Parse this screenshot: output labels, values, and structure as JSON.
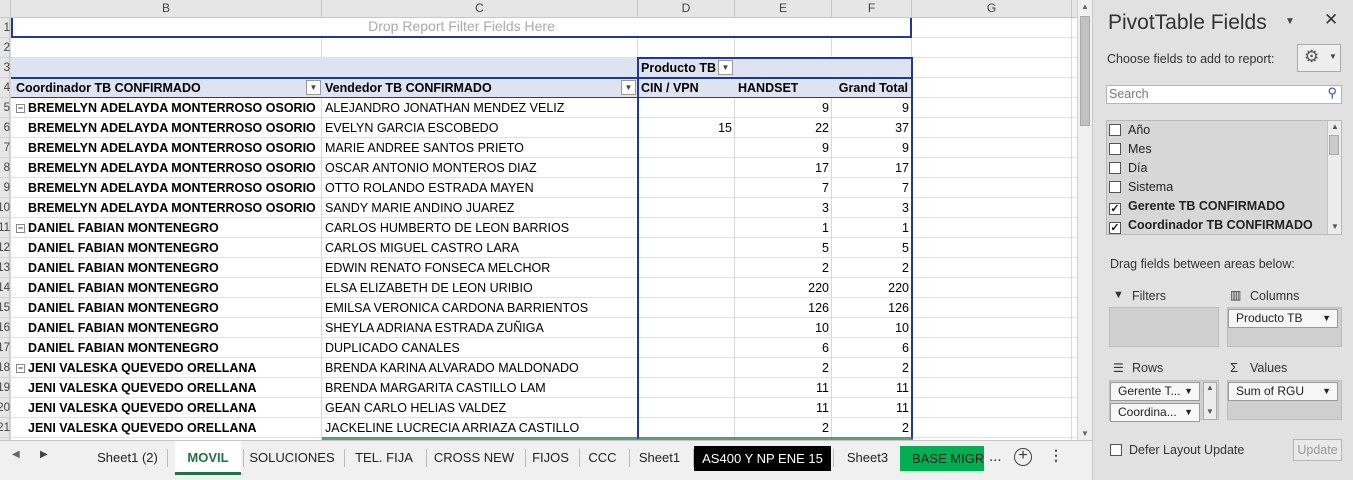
{
  "columns": [
    "B",
    "C",
    "D",
    "E",
    "F",
    "G"
  ],
  "rows": [
    "1",
    "2",
    "3",
    "4",
    "5",
    "6",
    "7",
    "8",
    "9",
    "10",
    "11",
    "12",
    "13",
    "14",
    "15",
    "16",
    "17",
    "18",
    "19",
    "20",
    "21"
  ],
  "pivot": {
    "filter_placeholder": "Drop Report Filter Fields Here",
    "col_field": "Producto TB",
    "row_header_1": "Coordinador TB CONFIRMADO",
    "row_header_2": "Vendedor TB CONFIRMADO",
    "col_headers": [
      "CIN / VPN",
      "HANDSET",
      "Grand Total"
    ],
    "data": [
      {
        "coord": "BREMELYN ADELAYDA MONTERROSO OSORIO",
        "vend": "ALEJANDRO JONATHAN MENDEZ VELIZ",
        "cin": "",
        "handset": "9",
        "total": "9",
        "first": true
      },
      {
        "coord": "BREMELYN ADELAYDA MONTERROSO OSORIO",
        "vend": "EVELYN GARCIA ESCOBEDO",
        "cin": "15",
        "handset": "22",
        "total": "37",
        "first": false
      },
      {
        "coord": "BREMELYN ADELAYDA MONTERROSO OSORIO",
        "vend": "MARIE ANDREE SANTOS PRIETO",
        "cin": "",
        "handset": "9",
        "total": "9",
        "first": false
      },
      {
        "coord": "BREMELYN ADELAYDA MONTERROSO OSORIO",
        "vend": "OSCAR ANTONIO MONTEROS DIAZ",
        "cin": "",
        "handset": "17",
        "total": "17",
        "first": false
      },
      {
        "coord": "BREMELYN ADELAYDA MONTERROSO OSORIO",
        "vend": "OTTO ROLANDO ESTRADA MAYEN",
        "cin": "",
        "handset": "7",
        "total": "7",
        "first": false
      },
      {
        "coord": "BREMELYN ADELAYDA MONTERROSO OSORIO",
        "vend": "SANDY MARIE ANDINO JUAREZ",
        "cin": "",
        "handset": "3",
        "total": "3",
        "first": false
      },
      {
        "coord": "DANIEL FABIAN MONTENEGRO",
        "vend": "CARLOS HUMBERTO DE LEON BARRIOS",
        "cin": "",
        "handset": "1",
        "total": "1",
        "first": true
      },
      {
        "coord": "DANIEL FABIAN MONTENEGRO",
        "vend": "CARLOS MIGUEL CASTRO LARA",
        "cin": "",
        "handset": "5",
        "total": "5",
        "first": false
      },
      {
        "coord": "DANIEL FABIAN MONTENEGRO",
        "vend": "EDWIN RENATO FONSECA MELCHOR",
        "cin": "",
        "handset": "2",
        "total": "2",
        "first": false
      },
      {
        "coord": "DANIEL FABIAN MONTENEGRO",
        "vend": "ELSA ELIZABETH DE LEON URIBIO",
        "cin": "",
        "handset": "220",
        "total": "220",
        "first": false
      },
      {
        "coord": "DANIEL FABIAN MONTENEGRO",
        "vend": "EMILSA VERONICA CARDONA BARRIENTOS",
        "cin": "",
        "handset": "126",
        "total": "126",
        "first": false
      },
      {
        "coord": "DANIEL FABIAN MONTENEGRO",
        "vend": "SHEYLA ADRIANA ESTRADA ZUÑIGA",
        "cin": "",
        "handset": "10",
        "total": "10",
        "first": false
      },
      {
        "coord": "DANIEL FABIAN MONTENEGRO",
        "vend": "DUPLICADO CANALES",
        "cin": "",
        "handset": "6",
        "total": "6",
        "first": false
      },
      {
        "coord": "JENI VALESKA QUEVEDO ORELLANA",
        "vend": "BRENDA KARINA ALVARADO MALDONADO",
        "cin": "",
        "handset": "2",
        "total": "2",
        "first": true
      },
      {
        "coord": "JENI VALESKA QUEVEDO ORELLANA",
        "vend": "BRENDA MARGARITA CASTILLO LAM",
        "cin": "",
        "handset": "11",
        "total": "11",
        "first": false
      },
      {
        "coord": "JENI VALESKA QUEVEDO ORELLANA",
        "vend": "GEAN CARLO HELIAS VALDEZ",
        "cin": "",
        "handset": "11",
        "total": "11",
        "first": false
      },
      {
        "coord": "JENI VALESKA QUEVEDO ORELLANA",
        "vend": "JACKELINE LUCRECIA ARRIAZA CASTILLO",
        "cin": "",
        "handset": "2",
        "total": "2",
        "first": false
      }
    ]
  },
  "tabs": {
    "items": [
      {
        "label": "Sheet1 (2)",
        "style": "normal"
      },
      {
        "label": "MOVIL",
        "style": "active"
      },
      {
        "label": "SOLUCIONES",
        "style": "normal"
      },
      {
        "label": "TEL. FIJA",
        "style": "normal"
      },
      {
        "label": "CROSS NEW",
        "style": "normal"
      },
      {
        "label": "FIJOS",
        "style": "normal"
      },
      {
        "label": "CCC",
        "style": "normal"
      },
      {
        "label": "Sheet1",
        "style": "normal"
      },
      {
        "label": "AS400 Y NP ENE 15",
        "style": "black"
      },
      {
        "label": "Sheet3",
        "style": "normal"
      },
      {
        "label": "BASE MIGRA",
        "style": "green"
      }
    ],
    "more": "...",
    "active_color": "#217346",
    "green_tab_color": "#00b050"
  },
  "panel": {
    "title": "PivotTable Fields",
    "choose_label": "Choose fields to add to report:",
    "search_placeholder": "Search",
    "fields": [
      {
        "label": "Año",
        "checked": false
      },
      {
        "label": "Mes",
        "checked": false
      },
      {
        "label": "Día",
        "checked": false
      },
      {
        "label": "Sistema",
        "checked": false
      },
      {
        "label": "Gerente TB CONFIRMADO",
        "checked": true
      },
      {
        "label": "Coordinador TB CONFIRMADO",
        "checked": true
      }
    ],
    "drag_label": "Drag fields between areas below:",
    "filters_label": "Filters",
    "columns_label": "Columns",
    "rows_label": "Rows",
    "values_label": "Values",
    "columns_item": "Producto TB",
    "rows_items": [
      "Gerente T...",
      "Coordina..."
    ],
    "values_item": "Sum of RGU",
    "defer_label": "Defer Layout Update",
    "update_label": "Update"
  }
}
